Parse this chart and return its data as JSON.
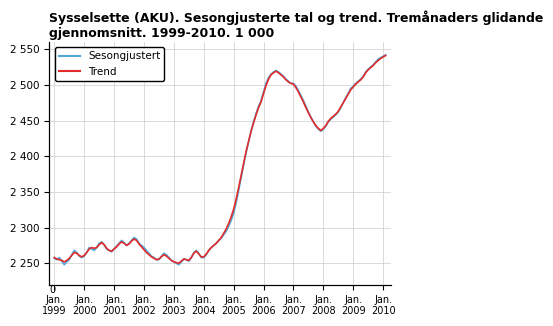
{
  "title": "Sysselsette (AKU). Sesongjusterte tal og trend. Tremånaders glidande\ngjennomsnitt. 1999-2010. 1 000",
  "title_fontsize": 9,
  "legend_labels": [
    "Sesongjustert",
    "Trend"
  ],
  "legend_colors": [
    "#4fa8d8",
    "#e32b2b"
  ],
  "ylim": [
    2220,
    2560
  ],
  "yticks": [
    2250,
    2300,
    2350,
    2400,
    2450,
    2500,
    2550
  ],
  "ylabel_break": 0,
  "xlabel_fontsize": 8,
  "ylabel_fontsize": 8,
  "xtick_labels": [
    "Jan.\n1999",
    "Jan.\n2000",
    "Jan.\n2001",
    "Jan.\n2002",
    "Jan.\n2003",
    "Jan.\n2004",
    "Jan.\n2005",
    "Jan.\n2006",
    "Jan.\n2007",
    "Jan.\n2008",
    "Jan.\n2009",
    "Jan.\n2010"
  ],
  "bg_color": "#ffffff",
  "grid_color": "#cccccc",
  "sesongjustert": [
    2257,
    2255,
    2258,
    2253,
    2248,
    2252,
    2255,
    2262,
    2268,
    2265,
    2260,
    2258,
    2260,
    2265,
    2272,
    2270,
    2268,
    2272,
    2278,
    2280,
    2276,
    2270,
    2268,
    2266,
    2270,
    2274,
    2278,
    2282,
    2279,
    2275,
    2278,
    2282,
    2286,
    2284,
    2278,
    2275,
    2272,
    2268,
    2264,
    2260,
    2258,
    2255,
    2255,
    2260,
    2264,
    2262,
    2258,
    2254,
    2252,
    2250,
    2248,
    2252,
    2256,
    2255,
    2253,
    2258,
    2265,
    2268,
    2264,
    2258,
    2258,
    2262,
    2268,
    2272,
    2275,
    2278,
    2282,
    2285,
    2290,
    2295,
    2302,
    2310,
    2320,
    2335,
    2352,
    2370,
    2388,
    2405,
    2420,
    2435,
    2448,
    2460,
    2470,
    2478,
    2490,
    2502,
    2510,
    2515,
    2518,
    2520,
    2518,
    2515,
    2512,
    2508,
    2505,
    2502,
    2502,
    2498,
    2492,
    2485,
    2478,
    2470,
    2462,
    2455,
    2448,
    2442,
    2438,
    2435,
    2438,
    2442,
    2448,
    2452,
    2455,
    2458,
    2462,
    2468,
    2475,
    2482,
    2488,
    2495,
    2498,
    2502,
    2505,
    2508,
    2512,
    2518,
    2522,
    2525,
    2528,
    2532,
    2536,
    2538,
    2540,
    2542
  ],
  "trend": [
    2258,
    2256,
    2255,
    2254,
    2252,
    2254,
    2257,
    2261,
    2265,
    2264,
    2261,
    2259,
    2261,
    2265,
    2270,
    2272,
    2271,
    2272,
    2276,
    2279,
    2276,
    2271,
    2268,
    2267,
    2270,
    2273,
    2277,
    2280,
    2278,
    2275,
    2277,
    2281,
    2284,
    2282,
    2277,
    2273,
    2269,
    2265,
    2262,
    2259,
    2257,
    2255,
    2256,
    2259,
    2262,
    2260,
    2257,
    2254,
    2252,
    2251,
    2250,
    2253,
    2256,
    2255,
    2254,
    2258,
    2264,
    2267,
    2263,
    2259,
    2259,
    2263,
    2268,
    2272,
    2275,
    2278,
    2282,
    2286,
    2292,
    2298,
    2306,
    2315,
    2326,
    2340,
    2356,
    2373,
    2390,
    2407,
    2421,
    2435,
    2447,
    2458,
    2468,
    2476,
    2488,
    2499,
    2508,
    2514,
    2517,
    2519,
    2517,
    2514,
    2511,
    2507,
    2504,
    2502,
    2501,
    2496,
    2490,
    2483,
    2476,
    2468,
    2461,
    2454,
    2448,
    2443,
    2439,
    2436,
    2439,
    2443,
    2449,
    2453,
    2456,
    2459,
    2463,
    2469,
    2475,
    2481,
    2487,
    2493,
    2497,
    2501,
    2504,
    2507,
    2511,
    2517,
    2521,
    2524,
    2527,
    2531,
    2534,
    2537,
    2539,
    2541
  ]
}
